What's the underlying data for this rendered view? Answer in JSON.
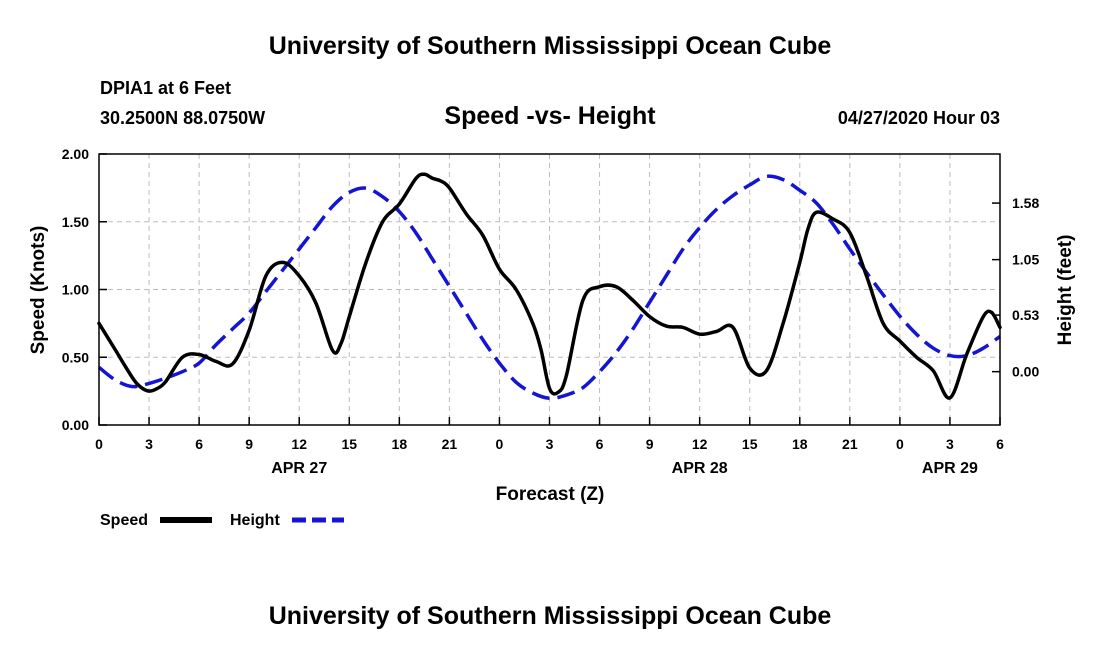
{
  "header": {
    "title": "University of Southern Mississippi Ocean Cube",
    "station": "DPIA1 at 6 Feet",
    "coords": "30.2500N 88.0750W",
    "datetime": "04/27/2020 Hour 03"
  },
  "footer": {
    "title": "University of Southern Mississippi Ocean Cube"
  },
  "legend": {
    "speed_label": "Speed",
    "height_label": "Height"
  },
  "colors": {
    "speed": "#000000",
    "height": "#1414d2",
    "grid": "#bdbdbd"
  },
  "chart_data": {
    "type": "line",
    "title": "Speed -vs- Height",
    "xlabel": "Forecast (Z)",
    "ylabel": "Speed (Knots)",
    "y2label": "Height (feet)",
    "x_unit": "forecast hour",
    "xlim": [
      0,
      54
    ],
    "ylim": [
      0,
      2
    ],
    "y2lim": [
      -0.5,
      2.04
    ],
    "x_ticks": [
      0,
      3,
      6,
      9,
      12,
      15,
      18,
      21,
      24,
      27,
      30,
      33,
      36,
      39,
      42,
      45,
      48,
      51,
      54
    ],
    "x_tick_labels": [
      "0",
      "3",
      "6",
      "9",
      "12",
      "15",
      "18",
      "21",
      "0",
      "3",
      "6",
      "9",
      "12",
      "15",
      "18",
      "21",
      "0",
      "3",
      "6"
    ],
    "y_ticks": [
      0,
      0.5,
      1,
      1.5,
      2
    ],
    "y_tick_labels": [
      "0.00",
      "0.50",
      "1.00",
      "1.50",
      "2.00"
    ],
    "y2_ticks": [
      0,
      0.53,
      1.05,
      1.58
    ],
    "y2_tick_labels": [
      "0.00",
      "0.53",
      "1.05",
      "1.58"
    ],
    "date_labels": [
      {
        "label": "APR 27",
        "x": 12
      },
      {
        "label": "APR 28",
        "x": 36
      },
      {
        "label": "APR 29",
        "x": 51
      }
    ],
    "grid": true,
    "series": [
      {
        "name": "Speed",
        "axis": "left",
        "style": "solid",
        "x": [
          0,
          1,
          2,
          2.5,
          3,
          3.5,
          4,
          5,
          6,
          7,
          8,
          9,
          10,
          11,
          12,
          13,
          14,
          14.5,
          15,
          16,
          17,
          18,
          19,
          19.5,
          20,
          20.5,
          21,
          22,
          23,
          24,
          25,
          26,
          26.5,
          27,
          27.5,
          28,
          29,
          30,
          31,
          32,
          33,
          34,
          35,
          36,
          37,
          38,
          39,
          40,
          41,
          42,
          42.5,
          43,
          44,
          45,
          46,
          47,
          48,
          49,
          50,
          51,
          52,
          53,
          53.5,
          54
        ],
        "values": [
          0.75,
          0.55,
          0.35,
          0.28,
          0.25,
          0.27,
          0.32,
          0.5,
          0.52,
          0.47,
          0.45,
          0.7,
          1.1,
          1.2,
          1.1,
          0.9,
          0.55,
          0.6,
          0.8,
          1.2,
          1.5,
          1.63,
          1.82,
          1.85,
          1.82,
          1.8,
          1.75,
          1.56,
          1.4,
          1.15,
          1.0,
          0.75,
          0.55,
          0.27,
          0.24,
          0.36,
          0.92,
          1.02,
          1.02,
          0.92,
          0.8,
          0.73,
          0.72,
          0.67,
          0.69,
          0.72,
          0.42,
          0.4,
          0.75,
          1.2,
          1.45,
          1.57,
          1.52,
          1.42,
          1.1,
          0.75,
          0.62,
          0.5,
          0.4,
          0.2,
          0.52,
          0.8,
          0.83,
          0.72
        ]
      },
      {
        "name": "Height",
        "axis": "right",
        "style": "dashed",
        "x": [
          0,
          1,
          2,
          3,
          4,
          5,
          6,
          7,
          8,
          9,
          10,
          11,
          12,
          13,
          14,
          15,
          16,
          17,
          18,
          19,
          20,
          21,
          22,
          23,
          24,
          25,
          26,
          27,
          28,
          29,
          30,
          31,
          32,
          33,
          34,
          35,
          36,
          37,
          38,
          39,
          40,
          41,
          42,
          43,
          44,
          45,
          46,
          47,
          48,
          49,
          50,
          51,
          52,
          53,
          54
        ],
        "values": [
          0.04,
          -0.08,
          -0.14,
          -0.11,
          -0.06,
          0.0,
          0.08,
          0.25,
          0.4,
          0.55,
          0.75,
          0.95,
          1.15,
          1.35,
          1.55,
          1.68,
          1.72,
          1.64,
          1.5,
          1.3,
          1.05,
          0.8,
          0.55,
          0.3,
          0.08,
          -0.1,
          -0.2,
          -0.25,
          -0.22,
          -0.15,
          0.0,
          0.18,
          0.4,
          0.65,
          0.9,
          1.15,
          1.35,
          1.52,
          1.65,
          1.75,
          1.83,
          1.8,
          1.7,
          1.58,
          1.38,
          1.15,
          0.93,
          0.72,
          0.52,
          0.35,
          0.22,
          0.15,
          0.15,
          0.22,
          0.33
        ]
      }
    ]
  }
}
